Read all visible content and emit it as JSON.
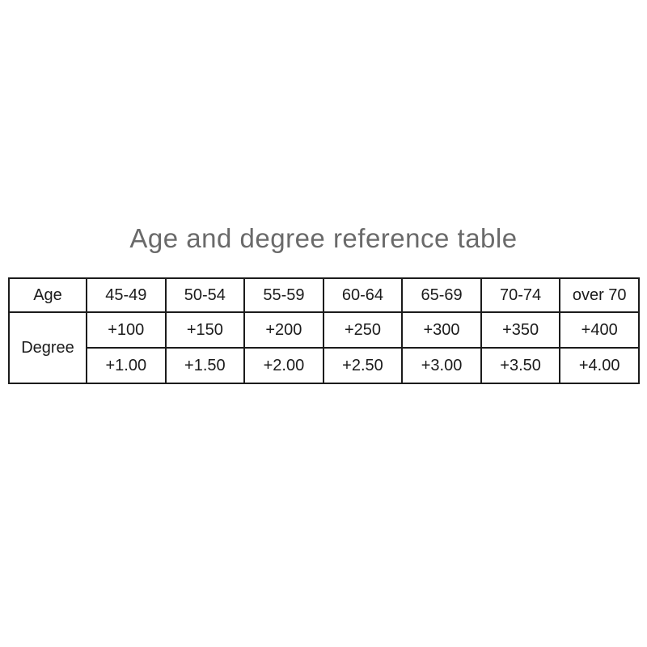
{
  "page": {
    "title": "Age and degree reference table",
    "title_color": "#6a6a6a",
    "background": "#ffffff"
  },
  "table": {
    "border_color": "#1b1b1b",
    "text_color": "#1b1b1b",
    "row_headers": [
      "Age",
      "Degree"
    ],
    "age_ranges": [
      "45-49",
      "50-54",
      "55-59",
      "60-64",
      "65-69",
      "70-74",
      "over 70"
    ],
    "degree_values": [
      "+100",
      "+150",
      "+200",
      "+250",
      "+300",
      "+350",
      "+400"
    ],
    "diopter_values": [
      "+1.00",
      "+1.50",
      "+2.00",
      "+2.50",
      "+3.00",
      "+3.50",
      "+4.00"
    ]
  },
  "chart_data": {
    "type": "table",
    "title": "Age and degree reference table",
    "columns": [
      "Age",
      "45-49",
      "50-54",
      "55-59",
      "60-64",
      "65-69",
      "70-74",
      "over 70"
    ],
    "rows": [
      [
        "Degree",
        "+100",
        "+150",
        "+200",
        "+250",
        "+300",
        "+350",
        "+400"
      ],
      [
        "Degree",
        "+1.00",
        "+1.50",
        "+2.00",
        "+2.50",
        "+3.00",
        "+3.50",
        "+4.00"
      ]
    ],
    "notes": "Degree header cell spans both value rows; first value row is degree in hundredths (+100..+400), second is diopters (+1.00..+4.00)."
  }
}
